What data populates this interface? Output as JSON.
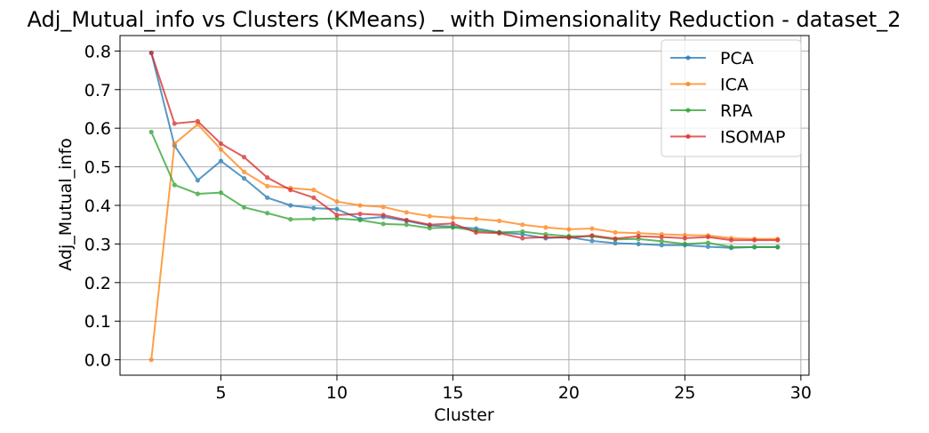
{
  "chart_data": {
    "type": "line",
    "title": "Adj_Mutual_info vs Clusters (KMeans) _ with Dimensionality Reduction - dataset_2",
    "xlabel": "Cluster",
    "ylabel": "Adj_Mutual_info",
    "xlim": [
      0.65,
      30.35
    ],
    "ylim": [
      -0.04,
      0.84
    ],
    "xticks": [
      5,
      10,
      15,
      20,
      25,
      30
    ],
    "yticks": [
      0.0,
      0.1,
      0.2,
      0.3,
      0.4,
      0.5,
      0.6,
      0.7,
      0.8
    ],
    "grid": true,
    "legend": "top-right",
    "x": [
      2,
      3,
      4,
      5,
      6,
      7,
      8,
      9,
      10,
      11,
      12,
      13,
      14,
      15,
      16,
      17,
      18,
      19,
      20,
      21,
      22,
      23,
      24,
      25,
      26,
      27,
      28,
      29
    ],
    "series": [
      {
        "name": "PCA",
        "color": "#1f77b4",
        "values": [
          0.795,
          0.555,
          0.465,
          0.515,
          0.47,
          0.42,
          0.4,
          0.393,
          0.39,
          0.365,
          0.37,
          0.36,
          0.348,
          0.345,
          0.34,
          0.33,
          0.325,
          0.315,
          0.318,
          0.308,
          0.302,
          0.3,
          0.297,
          0.297,
          0.293,
          0.29,
          0.292,
          0.292
        ]
      },
      {
        "name": "ICA",
        "color": "#ff7f0e",
        "values": [
          0.0,
          0.56,
          0.61,
          0.545,
          0.487,
          0.45,
          0.445,
          0.44,
          0.41,
          0.4,
          0.396,
          0.382,
          0.372,
          0.368,
          0.365,
          0.36,
          0.35,
          0.343,
          0.338,
          0.34,
          0.33,
          0.328,
          0.325,
          0.323,
          0.322,
          0.315,
          0.313,
          0.313
        ]
      },
      {
        "name": "RPA",
        "color": "#2ca02c",
        "values": [
          0.59,
          0.453,
          0.43,
          0.433,
          0.395,
          0.38,
          0.364,
          0.365,
          0.366,
          0.362,
          0.352,
          0.35,
          0.341,
          0.343,
          0.335,
          0.33,
          0.332,
          0.325,
          0.32,
          0.32,
          0.312,
          0.313,
          0.307,
          0.3,
          0.303,
          0.292,
          0.292,
          0.292
        ]
      },
      {
        "name": "ISOMAP",
        "color": "#d62728",
        "values": [
          0.795,
          0.612,
          0.618,
          0.56,
          0.525,
          0.472,
          0.44,
          0.42,
          0.375,
          0.378,
          0.375,
          0.362,
          0.35,
          0.353,
          0.33,
          0.328,
          0.315,
          0.318,
          0.316,
          0.322,
          0.314,
          0.32,
          0.318,
          0.315,
          0.318,
          0.31,
          0.31,
          0.31
        ]
      }
    ]
  }
}
